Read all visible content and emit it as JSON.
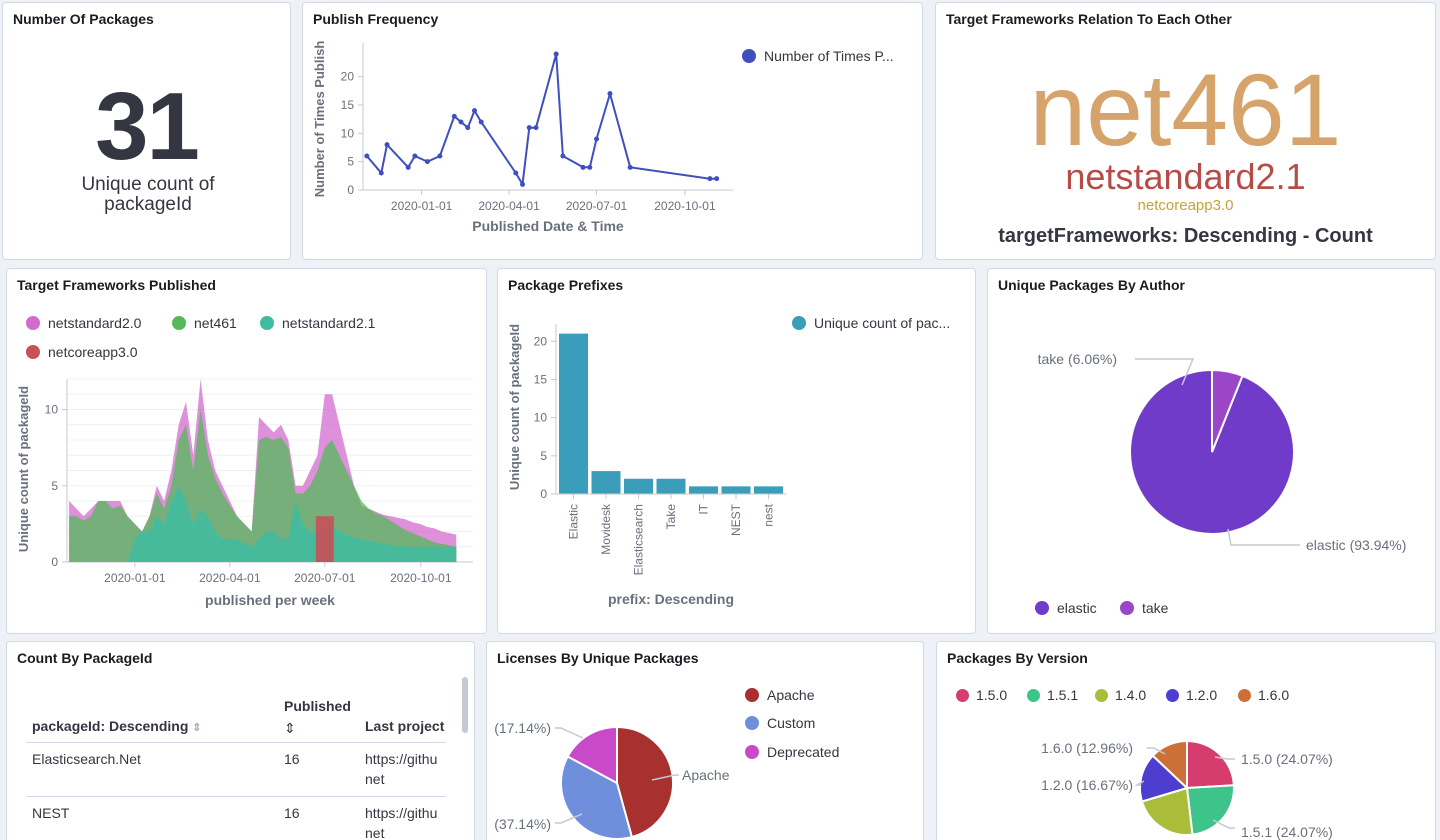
{
  "panels": {
    "packages_count": {
      "title": "Number Of Packages",
      "value": "31",
      "label": "Unique count of packageId"
    },
    "publish_frequency": {
      "title": "Publish Frequency",
      "legend": "Number of Times P..."
    },
    "tag_cloud": {
      "title": "Target Frameworks Relation To Each Other",
      "tags": [
        {
          "text": "net461",
          "color": "#d6a36b"
        },
        {
          "text": "netstandard2.1",
          "color": "#b54c47"
        },
        {
          "text": "netcoreapp3.0",
          "color": "#c9a13c"
        }
      ],
      "caption": "targetFrameworks: Descending - Count"
    },
    "frameworks_published": {
      "title": "Target Frameworks Published",
      "legend": [
        {
          "label": "netstandard2.0",
          "color": "#d36bcf"
        },
        {
          "label": "net461",
          "color": "#54b95a"
        },
        {
          "label": "netstandard2.1",
          "color": "#3ebca1"
        },
        {
          "label": "netcoreapp3.0",
          "color": "#c75059"
        }
      ]
    },
    "package_prefixes": {
      "title": "Package Prefixes",
      "legend": "Unique count of pac..."
    },
    "by_author": {
      "title": "Unique Packages By Author",
      "labels": [
        "take (6.06%)",
        "elastic (93.94%)"
      ],
      "legend": [
        {
          "label": "elastic",
          "color": "#6f3bc8"
        },
        {
          "label": "take",
          "color": "#9b45c9"
        }
      ]
    },
    "count_by_package": {
      "title": "Count By PackageId",
      "columns": {
        "package": "packageId: Descending",
        "published": "Published",
        "last_project": "Last project"
      },
      "rows": [
        {
          "package": "Elasticsearch.Net",
          "published": "16",
          "url_1": "https://githu",
          "url_2": "net"
        },
        {
          "package": "NEST",
          "published": "16",
          "url_1": "https://githu",
          "url_2": "net"
        }
      ]
    },
    "licenses": {
      "title": "Licenses By Unique Packages",
      "labels": [
        "(17.14%)",
        "(37.14%)",
        "Apache"
      ],
      "legend": [
        {
          "label": "Apache",
          "color": "#a8302f"
        },
        {
          "label": "Custom",
          "color": "#6f8fdc"
        },
        {
          "label": "Deprecated",
          "color": "#c94ac9"
        }
      ]
    },
    "by_version": {
      "title": "Packages By Version",
      "legend": [
        {
          "label": "1.5.0",
          "color": "#d43d6d"
        },
        {
          "label": "1.5.1",
          "color": "#3ec48a"
        },
        {
          "label": "1.4.0",
          "color": "#a9bd3a"
        },
        {
          "label": "1.2.0",
          "color": "#4d3ed0"
        },
        {
          "label": "1.6.0",
          "color": "#cd7038"
        }
      ],
      "labels": [
        "1.6.0 (12.96%)",
        "1.5.0 (24.07%)",
        "1.2.0 (16.67%)",
        "1.5.1 (24.07%)"
      ]
    }
  },
  "chart_data": [
    {
      "id": "publish_frequency",
      "type": "line",
      "xlabel": "Published Date & Time",
      "ylabel": "Number of Times Publish",
      "x_ticks": [
        "2020-01-01",
        "2020-04-01",
        "2020-07-01",
        "2020-10-01"
      ],
      "y_ticks": [
        0,
        5,
        10,
        15,
        20
      ],
      "ylim": [
        0,
        24
      ],
      "series": [
        {
          "name": "Number of Times P...",
          "color": "#3f4fbf",
          "points": [
            [
              "2019-11-05",
              6
            ],
            [
              "2019-11-20",
              3
            ],
            [
              "2019-11-26",
              8
            ],
            [
              "2019-12-18",
              4
            ],
            [
              "2019-12-25",
              6
            ],
            [
              "2020-01-07",
              5
            ],
            [
              "2020-01-20",
              6
            ],
            [
              "2020-02-04",
              13
            ],
            [
              "2020-02-11",
              12
            ],
            [
              "2020-02-18",
              11
            ],
            [
              "2020-02-25",
              14
            ],
            [
              "2020-03-03",
              12
            ],
            [
              "2020-04-08",
              3
            ],
            [
              "2020-04-15",
              1
            ],
            [
              "2020-04-22",
              11
            ],
            [
              "2020-04-29",
              11
            ],
            [
              "2020-05-20",
              24
            ],
            [
              "2020-05-27",
              6
            ],
            [
              "2020-06-17",
              4
            ],
            [
              "2020-06-24",
              4
            ],
            [
              "2020-07-01",
              9
            ],
            [
              "2020-07-15",
              17
            ],
            [
              "2020-08-05",
              4
            ],
            [
              "2020-10-27",
              2
            ],
            [
              "2020-11-03",
              2
            ]
          ]
        }
      ]
    },
    {
      "id": "frameworks_published",
      "type": "area",
      "xlabel": "published per week",
      "ylabel": "Unique count of packageId",
      "x_ticks": [
        "2020-01-01",
        "2020-04-01",
        "2020-07-01",
        "2020-10-01"
      ],
      "y_ticks": [
        0,
        5,
        10
      ],
      "ylim": [
        0,
        12
      ],
      "x_dates": [
        "2019-10-30",
        "2019-11-06",
        "2019-11-13",
        "2019-11-20",
        "2019-11-27",
        "2019-12-04",
        "2019-12-11",
        "2019-12-18",
        "2019-12-25",
        "2020-01-01",
        "2020-01-08",
        "2020-01-15",
        "2020-01-22",
        "2020-01-29",
        "2020-02-05",
        "2020-02-12",
        "2020-02-19",
        "2020-02-26",
        "2020-03-04",
        "2020-03-11",
        "2020-03-18",
        "2020-03-25",
        "2020-04-01",
        "2020-04-08",
        "2020-04-15",
        "2020-04-22",
        "2020-04-29",
        "2020-05-06",
        "2020-05-13",
        "2020-05-20",
        "2020-05-27",
        "2020-06-03",
        "2020-06-10",
        "2020-06-17",
        "2020-06-24",
        "2020-07-01",
        "2020-07-08",
        "2020-07-15",
        "2020-07-22",
        "2020-07-29",
        "2020-08-05",
        "2020-08-12",
        "2020-08-19",
        "2020-08-26",
        "2020-09-02",
        "2020-09-09",
        "2020-09-16",
        "2020-09-23",
        "2020-09-30",
        "2020-10-07",
        "2020-10-14",
        "2020-10-21",
        "2020-10-28",
        "2020-11-04"
      ],
      "series": [
        {
          "name": "netstandard2.0",
          "color": "#d36bcf",
          "values": [
            4,
            3.5,
            3,
            3.5,
            4,
            4,
            4,
            4,
            3,
            2.5,
            2,
            3,
            5,
            4,
            6,
            9,
            10.5,
            7,
            12,
            8,
            6,
            5,
            4,
            3,
            2.5,
            2,
            9.5,
            9,
            8.5,
            9,
            8,
            5,
            5,
            6,
            7,
            11,
            11,
            9,
            7,
            5,
            3.7,
            3.5,
            3.3,
            3.1,
            3,
            2.9,
            2.8,
            2.6,
            2.5,
            2.3,
            2.2,
            2,
            1.9,
            1.8
          ]
        },
        {
          "name": "net461",
          "color": "#54b95a",
          "values": [
            3,
            3,
            2.7,
            3,
            4,
            4,
            3.5,
            3.7,
            3,
            2.5,
            2,
            3,
            4.5,
            3.5,
            5,
            8,
            9,
            6,
            10,
            7,
            5.5,
            4.5,
            3.7,
            3,
            2.5,
            2,
            8,
            8.2,
            8,
            8.2,
            7.5,
            4.5,
            4.5,
            5,
            6,
            7.5,
            8,
            7,
            6,
            5,
            4,
            3.5,
            3.2,
            3,
            2.7,
            2.4,
            2.1,
            1.9,
            1.7,
            1.5,
            1.3,
            1.2,
            1.1,
            1.0
          ]
        },
        {
          "name": "netstandard2.1",
          "color": "#3ebca1",
          "values": [
            0,
            0,
            0,
            0,
            0,
            0,
            0,
            0,
            0,
            1.5,
            2,
            2,
            3,
            2.5,
            4,
            5,
            4,
            2.5,
            3.5,
            3,
            2,
            1.5,
            1.5,
            1.5,
            1.2,
            1,
            1.5,
            2,
            2,
            1.5,
            1.5,
            4,
            2.5,
            2,
            2,
            2.2,
            2.4,
            2,
            1.8,
            1.6,
            1.5,
            1.4,
            1.3,
            1.2,
            1.1,
            1.1,
            1,
            1,
            1,
            1,
            1,
            1,
            1,
            1
          ]
        },
        {
          "name": "netcoreapp3.0",
          "color": "#c75059",
          "values": [
            0,
            0,
            0,
            0,
            0,
            0,
            0,
            0,
            0,
            0,
            0,
            0,
            0,
            0,
            0,
            0,
            0,
            0,
            0,
            0,
            0,
            0,
            0,
            0,
            0,
            0,
            0,
            0,
            0,
            0,
            0,
            0,
            0,
            0,
            0,
            0,
            0,
            0,
            0,
            0,
            0,
            0,
            0,
            0,
            0,
            0,
            0,
            0,
            0,
            0,
            0,
            0,
            0,
            0
          ],
          "bar": {
            "date": "2020-07-01",
            "value": 3
          }
        }
      ]
    },
    {
      "id": "package_prefixes",
      "type": "bar",
      "xlabel": "prefix: Descending",
      "ylabel": "Unique count of packageId",
      "categories": [
        "Elastic",
        "Movidesk",
        "Elasticsearch",
        "Take",
        "IT",
        "NEST",
        "nest"
      ],
      "values": [
        21,
        3,
        2,
        2,
        1,
        1,
        1
      ],
      "y_ticks": [
        0,
        5,
        10,
        15,
        20
      ],
      "ylim": [
        0,
        22
      ],
      "color": "#3a9dba"
    },
    {
      "id": "by_author",
      "type": "pie",
      "slices": [
        {
          "label": "elastic",
          "value": 93.94,
          "color": "#6f3bc8"
        },
        {
          "label": "take",
          "value": 6.06,
          "color": "#9b45c9"
        }
      ]
    },
    {
      "id": "licenses",
      "type": "pie",
      "slices": [
        {
          "label": "Apache",
          "value": 45.72,
          "color": "#a8302f"
        },
        {
          "label": "Custom",
          "value": 37.14,
          "color": "#6f8fdc"
        },
        {
          "label": "Deprecated",
          "value": 17.14,
          "color": "#c94ac9"
        }
      ]
    },
    {
      "id": "by_version",
      "type": "pie",
      "slices": [
        {
          "label": "1.5.0",
          "value": 24.07,
          "color": "#d43d6d"
        },
        {
          "label": "1.5.1",
          "value": 24.07,
          "color": "#3ec48a"
        },
        {
          "label": "1.4.0",
          "value": 22.23,
          "color": "#a9bd3a"
        },
        {
          "label": "1.2.0",
          "value": 16.67,
          "color": "#4d3ed0"
        },
        {
          "label": "1.6.0",
          "value": 12.96,
          "color": "#cd7038"
        }
      ]
    }
  ]
}
